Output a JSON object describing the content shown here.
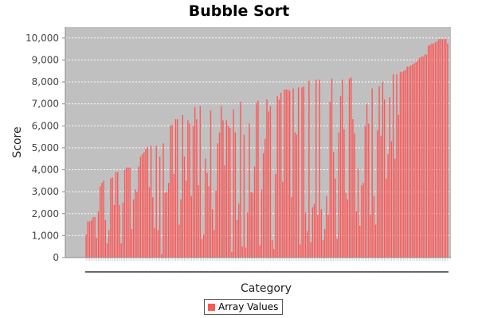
{
  "chart_data": {
    "type": "bar",
    "title": "Bubble Sort",
    "xlabel": "Category",
    "ylabel": "Score",
    "ylim": [
      0,
      10500
    ],
    "yticks": [
      0,
      1000,
      2000,
      3000,
      4000,
      5000,
      6000,
      7000,
      8000,
      9000,
      10000
    ],
    "ytick_labels": [
      "0",
      "1,000",
      "2,000",
      "3,000",
      "4,000",
      "5,000",
      "6,000",
      "7,000",
      "8,000",
      "9,000",
      "10,000"
    ],
    "grid": true,
    "legend_position": "bottom",
    "series": [
      {
        "name": "Array Values",
        "values": [
          1050,
          1650,
          1650,
          1700,
          1850,
          1850,
          900,
          2100,
          3250,
          3400,
          3500,
          1700,
          650,
          1250,
          3600,
          3650,
          2400,
          3900,
          3900,
          2400,
          650,
          2500,
          4000,
          4100,
          4100,
          4100,
          1300,
          2650,
          3100,
          3000,
          4150,
          4600,
          4700,
          4800,
          4950,
          5050,
          3200,
          5100,
          2750,
          1350,
          5100,
          1250,
          4600,
          150,
          5200,
          2950,
          3000,
          3400,
          6000,
          6050,
          3800,
          6300,
          6300,
          1500,
          2650,
          6500,
          4600,
          3500,
          6250,
          6100,
          2800,
          6000,
          6850,
          6300,
          3300,
          6900,
          850,
          1050,
          4500,
          3850,
          3250,
          6700,
          2200,
          1250,
          3050,
          5200,
          5700,
          6900,
          6250,
          4200,
          6250,
          6000,
          5900,
          250,
          6750,
          5700,
          1700,
          2450,
          7100,
          500,
          5600,
          450,
          2050,
          6100,
          3000,
          2950,
          4150,
          7050,
          7150,
          550,
          3100,
          4750,
          5400,
          7200,
          6650,
          6900,
          800,
          400,
          3800,
          7350,
          7200,
          7500,
          3450,
          7650,
          7650,
          7650,
          7600,
          2750,
          7700,
          5700,
          5600,
          7750,
          600,
          7750,
          7800,
          2050,
          1200,
          8050,
          700,
          2300,
          2450,
          8100,
          1950,
          8100,
          2200,
          800,
          1300,
          2800,
          1950,
          7100,
          8150,
          4800,
          3600,
          850,
          5700,
          7350,
          8100,
          5850,
          2950,
          2650,
          8150,
          8200,
          6300,
          5650,
          2100,
          4050,
          1450,
          3300,
          3400,
          6000,
          7000,
          6100,
          1950,
          7700,
          2800,
          1500,
          5800,
          7800,
          5550,
          8000,
          7200,
          3600,
          4700,
          7300,
          5300,
          8350,
          4500,
          8350,
          6500,
          8450,
          8450,
          8500,
          8550,
          8700,
          8700,
          8750,
          8800,
          8850,
          8900,
          9000,
          9100,
          9150,
          9150,
          9250,
          9250,
          9650,
          9700,
          9750,
          9750,
          9800,
          9850,
          9950,
          9950,
          9950,
          9950,
          9950,
          9750
        ]
      }
    ]
  }
}
